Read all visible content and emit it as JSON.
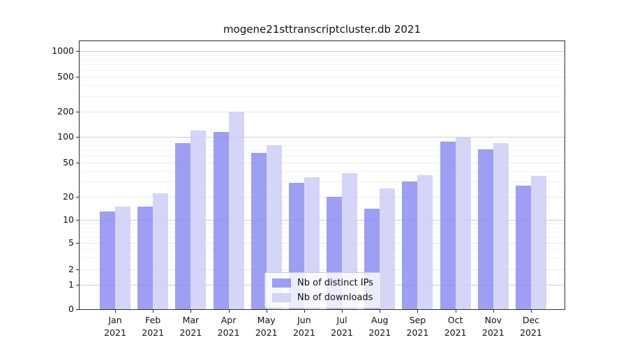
{
  "title": "mogene21sttranscriptcluster.db 2021",
  "colors": {
    "ips": "rgba(134,134,241,0.8)",
    "downloads": "rgba(206,206,246,0.85)",
    "grid_major": "#cfcfcf",
    "grid_labeled_minor": "#e8e8e8",
    "grid_minor": "#f3f3f3",
    "axis": "#2e2e2e"
  },
  "legend": {
    "items": [
      {
        "label": "Nb of distinct IPs",
        "color": "rgba(134,134,241,0.8)"
      },
      {
        "label": "Nb of downloads",
        "color": "rgba(206,206,246,0.85)"
      }
    ]
  },
  "y_axis": {
    "tick_labels": [
      "1000",
      "500",
      "200",
      "100",
      "50",
      "20",
      "10",
      "5",
      "2",
      "1",
      "0"
    ]
  },
  "x_axis": {
    "months": [
      "Jan",
      "Feb",
      "Mar",
      "Apr",
      "May",
      "Jun",
      "Jul",
      "Aug",
      "Sep",
      "Oct",
      "Nov",
      "Dec"
    ],
    "year": "2021"
  },
  "chart_data": {
    "type": "bar",
    "title": "mogene21sttranscriptcluster.db 2021",
    "categories": [
      "Jan 2021",
      "Feb 2021",
      "Mar 2021",
      "Apr 2021",
      "May 2021",
      "Jun 2021",
      "Jul 2021",
      "Aug 2021",
      "Sep 2021",
      "Oct 2021",
      "Nov 2021",
      "Dec 2021"
    ],
    "series": [
      {
        "name": "Nb of distinct IPs",
        "values": [
          13,
          15,
          85,
          115,
          65,
          29,
          20,
          14,
          30,
          88,
          72,
          27
        ]
      },
      {
        "name": "Nb of downloads",
        "values": [
          15,
          22,
          120,
          200,
          80,
          34,
          38,
          25,
          36,
          100,
          85,
          35
        ]
      }
    ],
    "yscale": "symlog",
    "yticks": [
      0,
      1,
      2,
      5,
      10,
      20,
      50,
      100,
      200,
      500,
      1000
    ],
    "ylim": [
      0,
      1000
    ],
    "xlabel": "",
    "ylabel": "",
    "grid": true,
    "legend_position": "lower center"
  }
}
